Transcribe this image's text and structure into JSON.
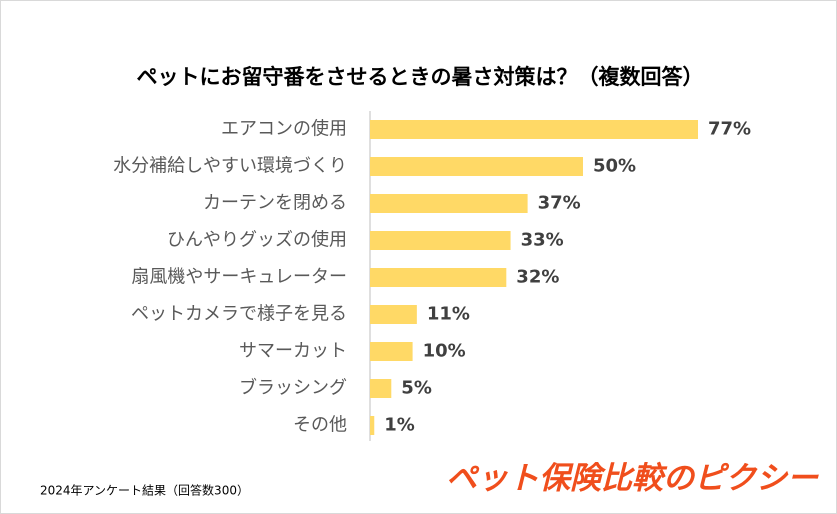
{
  "chart_data": {
    "type": "bar",
    "orientation": "horizontal",
    "title": "ペットにお留守番をさせるときの暑さ対策は？（複数回答）",
    "categories": [
      "エアコンの使用",
      "水分補給しやすい環境づくり",
      "カーテンを閉める",
      "ひんやりグッズの使用",
      "扇風機やサーキュレーター",
      "ペットカメラで様子を見る",
      "サマーカット",
      "ブラッシング",
      "その他"
    ],
    "values": [
      77,
      50,
      37,
      33,
      32,
      11,
      10,
      5,
      1
    ],
    "value_labels": [
      "77%",
      "50%",
      "37%",
      "33%",
      "32%",
      "11%",
      "10%",
      "5%",
      "1%"
    ],
    "color": "#ffd966",
    "source": "2024年アンケート結果（回答数300）",
    "logo": "ペット保険比較のピクシー"
  }
}
